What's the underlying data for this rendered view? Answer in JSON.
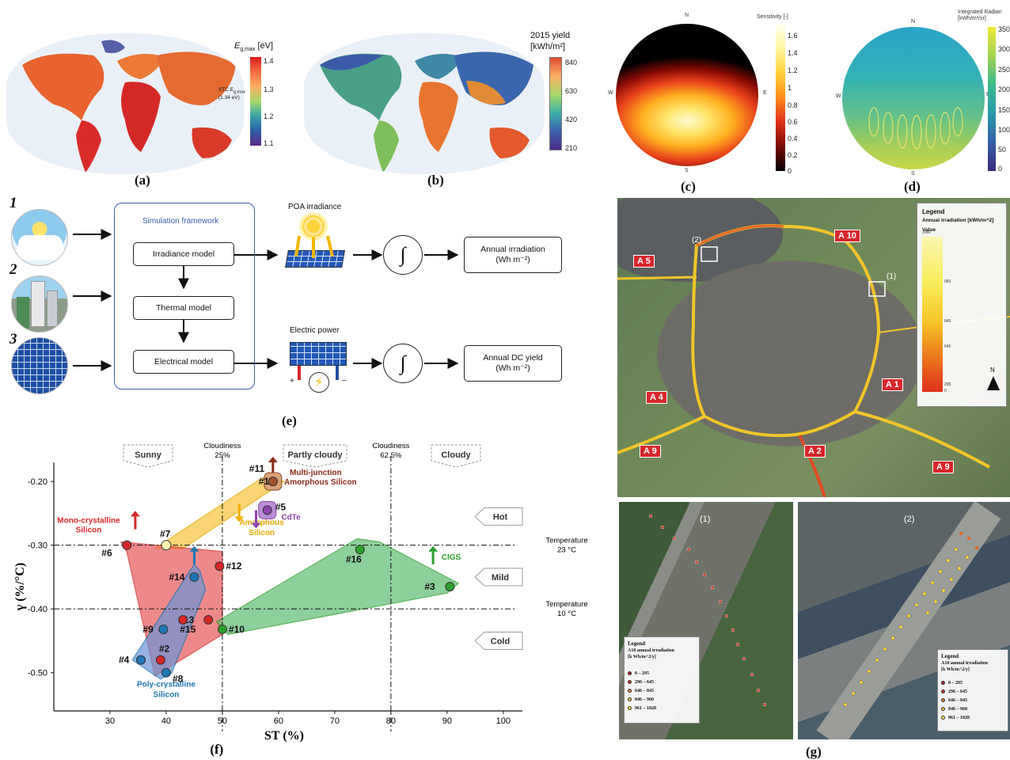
{
  "panel_labels": {
    "a": "(a)",
    "b": "(b)",
    "c": "(c)",
    "d": "(d)",
    "e": "(e)",
    "f": "(f)",
    "g": "(g)"
  },
  "map_a": {
    "legend_title": "E",
    "legend_sub": "g,max",
    "legend_unit": " [eV]",
    "annotation_line1": "STC E",
    "annotation_sub": "g,max",
    "annotation_line2": "(1.34 eV)",
    "ticks": [
      "1.4",
      "1.3",
      "1.2",
      "1.1"
    ]
  },
  "map_b": {
    "legend_title": "2015 yield",
    "legend_unit": "[kWh/m²]",
    "ticks": [
      "840",
      "630",
      "420",
      "210"
    ]
  },
  "sky_c": {
    "legend_title": "Sensitivity [-]",
    "ticks": [
      "1.6",
      "1.4",
      "1.2",
      "1",
      "0.8",
      "0.6",
      "0.4",
      "0.2",
      "0"
    ],
    "compass": {
      "n": "N",
      "s": "S",
      "e": "E",
      "w": "W"
    }
  },
  "sky_d": {
    "legend_title": "Integrated Radian",
    "legend_unit": "[kWh/m²/sr]",
    "ticks": [
      "350",
      "300",
      "250",
      "200",
      "150",
      "100",
      "50",
      "0"
    ],
    "compass": {
      "n": "N",
      "s": "S",
      "e": "E",
      "w": "W"
    }
  },
  "diagram_e": {
    "numbers": [
      "1",
      "2",
      "3"
    ],
    "framework_title": "Simulation framework",
    "irradiance_model": "Irradiance model",
    "thermal_model": "Thermal model",
    "electrical_model": "Electrical model",
    "poa_label": "POA irradiance",
    "power_label": "Electric power",
    "integral": "∫",
    "annual_irradiation_1": "Annual irradiation",
    "annual_irradiation_2": "(Wh m⁻²)",
    "annual_dc_1": "Annual DC yield",
    "annual_dc_2": "(Wh m⁻²)",
    "plus": "+",
    "minus": "−"
  },
  "chart_f": {
    "xlabel": "ST (%)",
    "ylabel": "γ (%/°C)",
    "xticks": [
      "30",
      "40",
      "50",
      "60",
      "70",
      "80",
      "90",
      "100"
    ],
    "yticks": [
      "-0.20",
      "-0.30",
      "-0.40",
      "-0.50"
    ],
    "zones": [
      "Sunny",
      "Partly cloudy",
      "Cloudy"
    ],
    "cloudiness_25_1": "Cloudiness",
    "cloudiness_25_2": "25%",
    "cloudiness_625_1": "Cloudiness",
    "cloudiness_625_2": "62.5%",
    "temp_23_1": "Temperature",
    "temp_23_2": "23 °C",
    "temp_10_1": "Temperature",
    "temp_10_2": "10 °C",
    "temp_zones": [
      "Hot",
      "Mild",
      "Cold"
    ],
    "group_mono_1": "Mono-crystalline",
    "group_mono_2": "Silicon",
    "group_poly_1": "Poly-crystalline",
    "group_poly_2": "Silicon",
    "group_amorph_1": "Amorphous",
    "group_amorph_2": "Silicon",
    "group_mj_1": "Multi-junction",
    "group_mj_2": "Amorphous Silicon",
    "group_cdte": "CdTe",
    "group_cigs": "CIGS",
    "points": [
      {
        "label": "#1",
        "x": 59,
        "y": -0.2,
        "color": "#c0392b"
      },
      {
        "label": "#11",
        "x": 59,
        "y": -0.2,
        "color": "#a0522d"
      },
      {
        "label": "#2",
        "x": 39,
        "y": -0.48,
        "color": "#d62728"
      },
      {
        "label": "#3",
        "x": 90.5,
        "y": -0.365,
        "color": "#2ca02c"
      },
      {
        "label": "#4",
        "x": 35.5,
        "y": -0.48,
        "color": "#1f77b4"
      },
      {
        "label": "#5",
        "x": 58,
        "y": -0.245,
        "color": "#8e44ad"
      },
      {
        "label": "#6",
        "x": 33,
        "y": -0.3,
        "color": "#d62728"
      },
      {
        "label": "#7",
        "x": 40,
        "y": -0.3,
        "color": "#f5c518"
      },
      {
        "label": "#8",
        "x": 40,
        "y": -0.5,
        "color": "#1f77b4"
      },
      {
        "label": "#9",
        "x": 39.5,
        "y": -0.432,
        "color": "#1f77b4"
      },
      {
        "label": "#10",
        "x": 50,
        "y": -0.432,
        "color": "#2ca02c"
      },
      {
        "label": "#12",
        "x": 49.5,
        "y": -0.333,
        "color": "#d62728"
      },
      {
        "label": "#13",
        "x": 47.5,
        "y": -0.417,
        "color": "#d62728"
      },
      {
        "label": "#14",
        "x": 45,
        "y": -0.35,
        "color": "#1f77b4"
      },
      {
        "label": "#15",
        "x": 43,
        "y": -0.417,
        "color": "#d62728"
      },
      {
        "label": "#16",
        "x": 74.5,
        "y": -0.307,
        "color": "#2ca02c"
      }
    ]
  },
  "map_g": {
    "roads": [
      "A 5",
      "A 10",
      "A 1",
      "A 4",
      "A 9",
      "A 2",
      "A 9"
    ],
    "inset_labels": [
      "(1)",
      "(2)"
    ],
    "legend_title": "Legend",
    "legend_sub": "Annual irradiation [kWh/m^2]",
    "legend_value": "Value",
    "legend_ticks": [
      "1060",
      "960",
      "845",
      "645",
      "295",
      "0"
    ],
    "north": "N",
    "inset_legend_title": "Legend",
    "inset_legend_sub_1": "A10 annual irradiation",
    "inset_legend_sub_2": "[k Wh/m^2/y]",
    "inset_legend_items": [
      "0 – 295",
      "296 – 645",
      "646 – 845",
      "846 – 960",
      "961 – 1028"
    ],
    "inset_legend_colors": [
      "#b2182b",
      "#d73027",
      "#e08030",
      "#f0c040",
      "#f5e050"
    ]
  }
}
